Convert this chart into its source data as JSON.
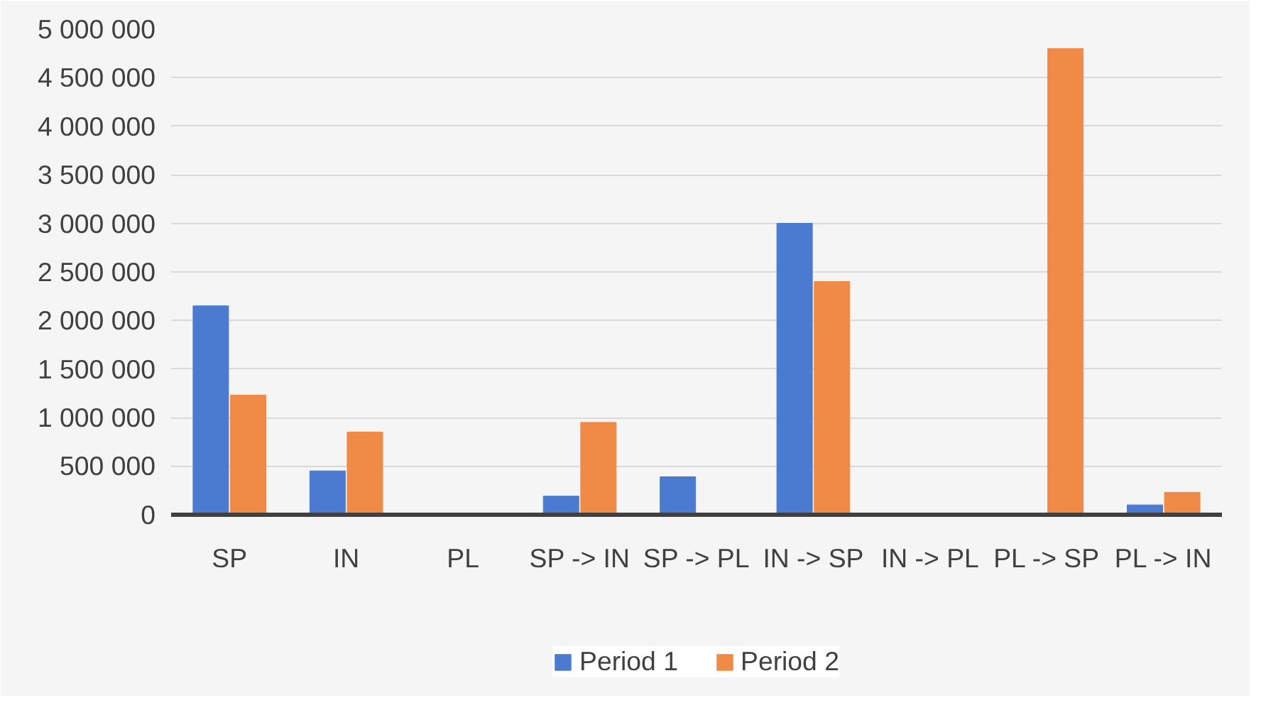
{
  "chart_data": {
    "type": "bar",
    "categories": [
      "SP",
      "IN",
      "PL",
      "SP -> IN",
      "SP -> PL",
      "IN -> SP",
      "IN -> PL",
      "PL -> SP",
      "PL -> IN"
    ],
    "series": [
      {
        "name": "Period 1",
        "color": "#4a7bd0",
        "values": [
          2150000,
          450000,
          0,
          190000,
          390000,
          3000000,
          0,
          0,
          100000
        ]
      },
      {
        "name": "Period 2",
        "color": "#ef8a47",
        "values": [
          1230000,
          850000,
          0,
          950000,
          0,
          2400000,
          0,
          4800000,
          230000
        ]
      }
    ],
    "ylim": [
      0,
      5000000
    ],
    "yticks": [
      {
        "value": 0,
        "label": "0"
      },
      {
        "value": 500000,
        "label": "500 000"
      },
      {
        "value": 1000000,
        "label": "1 000 000"
      },
      {
        "value": 1500000,
        "label": "1 500 000"
      },
      {
        "value": 2000000,
        "label": "2 000 000"
      },
      {
        "value": 2500000,
        "label": "2 500 000"
      },
      {
        "value": 3000000,
        "label": "3 000 000"
      },
      {
        "value": 3500000,
        "label": "3 500 000"
      },
      {
        "value": 4000000,
        "label": "4 000 000"
      },
      {
        "value": 4500000,
        "label": "4 500 000"
      },
      {
        "value": 5000000,
        "label": "5 000 000"
      }
    ],
    "grid": "y",
    "legend": "bottom"
  }
}
